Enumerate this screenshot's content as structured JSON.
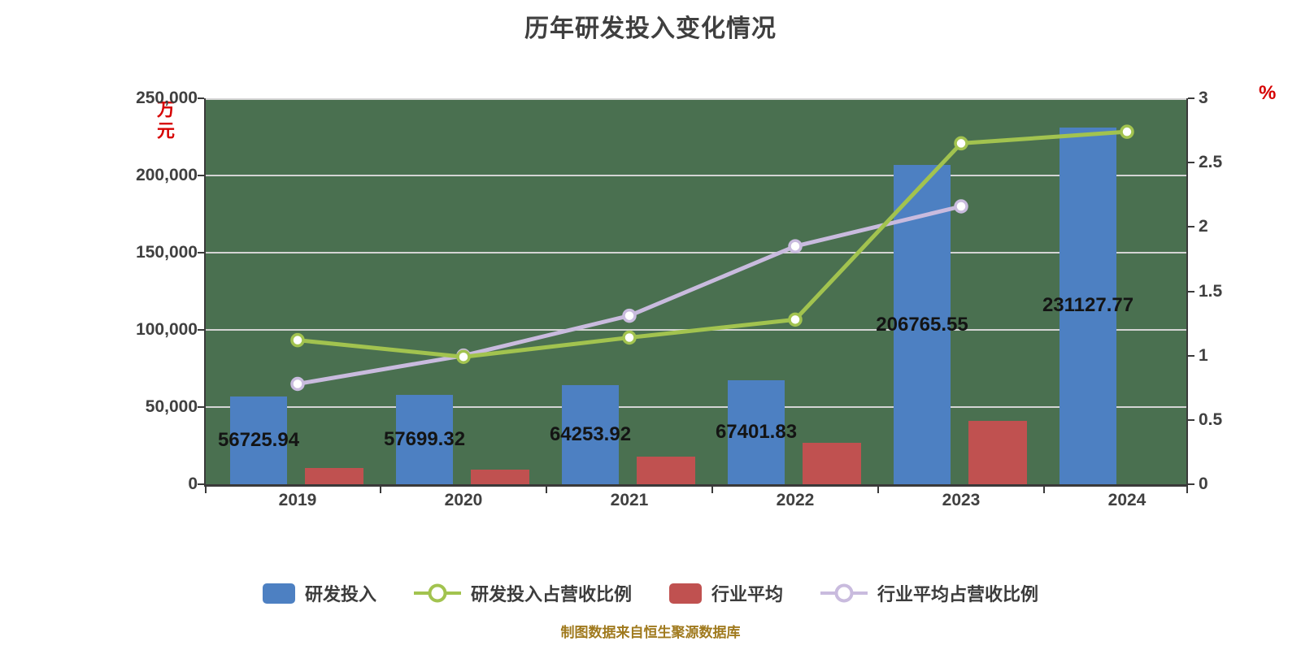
{
  "title": "历年研发投入变化情况",
  "caption": "制图数据来自恒生聚源数据库",
  "left_axis": {
    "unit": "万元",
    "tick_labels": [
      "250,000",
      "200,000",
      "150,000",
      "100,000",
      "50,000",
      "0"
    ],
    "max": 250000
  },
  "right_axis": {
    "unit": "%",
    "tick_labels": [
      "3",
      "2.5",
      "2",
      "1.5",
      "1",
      "0.5",
      "0"
    ],
    "max": 3
  },
  "chart_data": {
    "type": "bar+line",
    "categories": [
      "2019",
      "2020",
      "2021",
      "2022",
      "2023",
      "2024"
    ],
    "series": [
      {
        "name": "研发投入",
        "type": "bar",
        "axis": "left",
        "color": "#4d80c2",
        "values": [
          56725.94,
          57699.32,
          64253.92,
          67401.83,
          206765.55,
          231127.77
        ],
        "value_labels": [
          "56725.94",
          "57699.32",
          "64253.92",
          "67401.83",
          "206765.55",
          "231127.77"
        ]
      },
      {
        "name": "行业平均",
        "type": "bar",
        "axis": "left",
        "color": "#c05150",
        "values": [
          10500,
          9500,
          18000,
          27000,
          41000,
          null
        ]
      },
      {
        "name": "研发投入占营收比例",
        "type": "line",
        "axis": "right",
        "color": "#a2c34f",
        "marker": "circle-white-fill",
        "values": [
          1.12,
          0.99,
          1.14,
          1.28,
          2.65,
          2.74
        ]
      },
      {
        "name": "行业平均占营收比例",
        "type": "line",
        "axis": "right",
        "color": "#c9bbde",
        "marker": "circle-white-fill",
        "values": [
          0.78,
          1.0,
          1.31,
          1.85,
          2.16,
          null
        ]
      }
    ],
    "ylim_left": [
      0,
      250000
    ],
    "ylim_right": [
      0,
      3
    ],
    "grid": true,
    "legend_position": "bottom",
    "plot_bg": "#4a7050",
    "gridline_color": "#d4d4d4",
    "axis_color": "#3a3a3a"
  }
}
